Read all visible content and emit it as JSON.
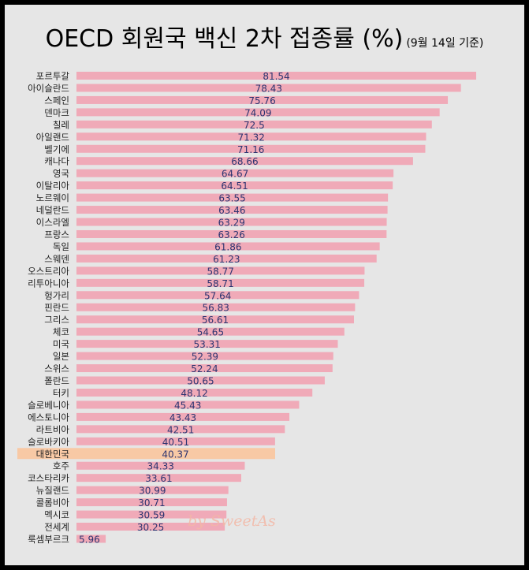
{
  "title": "OECD 회원국 백신 2차 접종률 (%)",
  "subtitle": "(9월 14일 기준)",
  "watermark": "by SweetAs",
  "chart_data": {
    "type": "bar",
    "orientation": "horizontal",
    "title": "OECD 회원국 백신 2차 접종률 (%)",
    "subtitle": "(9월 14일 기준)",
    "xlabel": "",
    "ylabel": "",
    "xlim": [
      0,
      100
    ],
    "grid": false,
    "legend": "none",
    "highlight_category": "대한민국",
    "colors": {
      "bar": "#f0aab8",
      "highlight": "#f8c9a5",
      "label": "#2c3470",
      "category": "#222222"
    },
    "categories": [
      "포르투갈",
      "아이슬란드",
      "스페인",
      "덴마크",
      "칠레",
      "아일랜드",
      "벨기에",
      "캐나다",
      "영국",
      "이탈리아",
      "노르웨이",
      "네덜란드",
      "이스라엘",
      "프랑스",
      "독일",
      "스웨덴",
      "오스트리아",
      "리투아니아",
      "헝가리",
      "핀란드",
      "그리스",
      "체코",
      "미국",
      "일본",
      "스위스",
      "폴란드",
      "터키",
      "슬로베니아",
      "에스토니아",
      "라트비아",
      "슬로바키아",
      "대한민국",
      "호주",
      "코스타리카",
      "뉴질랜드",
      "콜롬비아",
      "멕시코",
      "전세계",
      "룩셈부르크"
    ],
    "values": [
      81.54,
      78.43,
      75.76,
      74.09,
      72.5,
      71.32,
      71.16,
      68.66,
      64.67,
      64.51,
      63.55,
      63.46,
      63.29,
      63.26,
      61.86,
      61.23,
      58.77,
      58.71,
      57.64,
      56.83,
      56.61,
      54.65,
      53.31,
      52.39,
      52.24,
      50.65,
      48.12,
      45.43,
      43.43,
      42.51,
      40.51,
      40.37,
      34.33,
      33.61,
      30.99,
      30.71,
      30.59,
      30.25,
      5.96
    ],
    "value_labels": [
      "81.54",
      "78.43",
      "75.76",
      "74.09",
      "72.5",
      "71.32",
      "71.16",
      "68.66",
      "64.67",
      "64.51",
      "63.55",
      "63.46",
      "63.29",
      "63.26",
      "61.86",
      "61.23",
      "58.77",
      "58.71",
      "57.64",
      "56.83",
      "56.61",
      "54.65",
      "53.31",
      "52.39",
      "52.24",
      "50.65",
      "48.12",
      "45.43",
      "43.43",
      "42.51",
      "40.51",
      "40.37",
      "34.33",
      "33.61",
      "30.99",
      "30.71",
      "30.59",
      "30.25",
      "5.96"
    ]
  }
}
